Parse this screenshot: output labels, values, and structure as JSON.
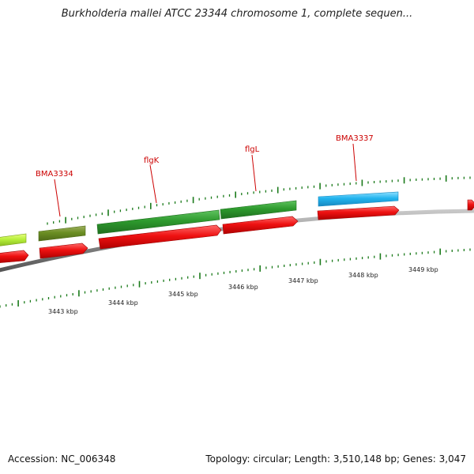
{
  "title": "Burkholderia mallei ATCC 23344 chromosome 1, complete sequen...",
  "footer": {
    "accession": "Accession: NC_006348",
    "info": "Topology: circular; Length: 3,510,148 bp; Genes: 3,047"
  },
  "gene_labels": [
    "BMA3334",
    "flgK",
    "flgL",
    "BMA3337"
  ],
  "scale_labels": [
    "3443 kbp",
    "3444 kbp",
    "3445 kbp",
    "3446 kbp",
    "3447 kbp",
    "3448 kbp",
    "3449 kbp"
  ],
  "colors": {
    "gene_label": "#cc0000",
    "tick": "#1a7a1a",
    "red_feature": "#ee1111",
    "green_feature": "#228b22",
    "olive_feature": "#6b8e23",
    "lime_feature": "#9acd32",
    "cyan_feature": "#22b4ee",
    "backbone": "#888888"
  }
}
